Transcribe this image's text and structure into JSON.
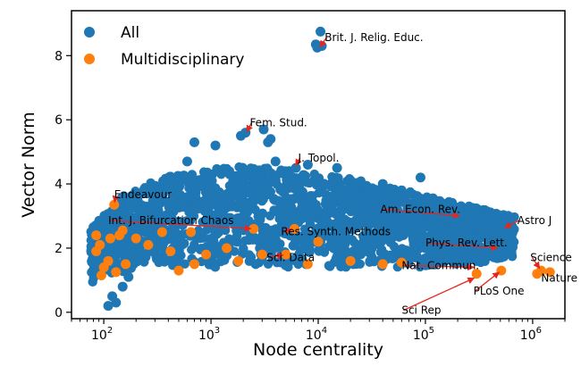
{
  "chart_data": {
    "type": "scatter",
    "xlabel": "Node centrality",
    "ylabel": "Vector Norm",
    "xscale": "log",
    "xlim": [
      50,
      2000000
    ],
    "ylim": [
      -0.2,
      9.4
    ],
    "xticks": [
      100,
      1000,
      10000,
      100000,
      1000000
    ],
    "xtick_labels": [
      "10",
      "10",
      "10",
      "10",
      "10"
    ],
    "xtick_exponents": [
      "2",
      "3",
      "4",
      "5",
      "6"
    ],
    "yticks": [
      0,
      2,
      4,
      6,
      8
    ],
    "ytick_labels": [
      "0",
      "2",
      "4",
      "6",
      "8"
    ],
    "grid": false,
    "legend_position": "top-left",
    "colors": {
      "All": "#1f77b4",
      "Multidisciplinary": "#ff7f0e",
      "arrow": "#e8261c"
    },
    "series": [
      {
        "name": "All",
        "points": [
          [
            9500,
            8.35
          ],
          [
            10500,
            8.75
          ],
          [
            10800,
            8.3
          ],
          [
            9800,
            8.25
          ],
          [
            2100,
            5.6
          ],
          [
            1900,
            5.5
          ],
          [
            3100,
            5.7
          ],
          [
            3600,
            5.4
          ],
          [
            3400,
            5.3
          ],
          [
            6200,
            4.5
          ],
          [
            8000,
            4.6
          ],
          [
            700,
            5.3
          ],
          [
            1100,
            5.2
          ],
          [
            180000,
            3.1
          ],
          [
            210000,
            3.0
          ],
          [
            250000,
            2.8
          ],
          [
            90000,
            4.2
          ],
          [
            520000,
            2.6
          ],
          [
            600000,
            2.2
          ],
          [
            560000,
            2.3
          ],
          [
            100000,
            2.0
          ],
          [
            180000,
            1.8
          ],
          [
            300000,
            1.6
          ],
          [
            120,
            0.5
          ],
          [
            130,
            0.3
          ],
          [
            150,
            0.8
          ],
          [
            110,
            0.2
          ],
          [
            170,
            1.1
          ],
          [
            90,
            1.5
          ],
          [
            95,
            2.7
          ],
          [
            600,
            4.7
          ],
          [
            4000,
            4.7
          ],
          [
            15000,
            4.5
          ],
          [
            40000,
            4.0
          ],
          [
            60000,
            3.8
          ]
        ]
      },
      {
        "name": "Multidisciplinary",
        "points": [
          [
            125,
            3.35
          ],
          [
            140,
            2.4
          ],
          [
            2500,
            2.6
          ],
          [
            6000,
            2.6
          ],
          [
            10000,
            2.2
          ],
          [
            5000,
            1.8
          ],
          [
            1100000,
            1.2
          ],
          [
            1200000,
            1.3
          ],
          [
            1450000,
            1.25
          ],
          [
            510000,
            1.3
          ],
          [
            300000,
            1.2
          ],
          [
            85,
            1.9
          ],
          [
            92,
            2.1
          ],
          [
            100,
            1.4
          ],
          [
            110,
            1.6
          ],
          [
            115,
            2.3
          ],
          [
            160,
            1.5
          ],
          [
            200,
            2.3
          ],
          [
            260,
            2.1
          ],
          [
            350,
            2.5
          ],
          [
            420,
            1.9
          ],
          [
            500,
            1.3
          ],
          [
            650,
            2.5
          ],
          [
            900,
            1.8
          ],
          [
            1400,
            2.0
          ],
          [
            1800,
            1.6
          ],
          [
            3000,
            1.8
          ],
          [
            8000,
            1.5
          ],
          [
            20000,
            1.6
          ],
          [
            40000,
            1.5
          ],
          [
            60000,
            1.55
          ],
          [
            95,
            1.15
          ],
          [
            130,
            1.25
          ],
          [
            150,
            2.55
          ],
          [
            85,
            2.4
          ],
          [
            700,
            1.5
          ]
        ]
      }
    ],
    "annotations": [
      {
        "text": "Brit. J. Relig. Educ.",
        "x": 10000,
        "y": 8.2,
        "tx": 11500,
        "ty": 8.45
      },
      {
        "text": "Fem. Stud.",
        "x": 2100,
        "y": 5.55,
        "tx": 2300,
        "ty": 5.8
      },
      {
        "text": "J. Topol.",
        "x": 6000,
        "y": 4.5,
        "tx": 6500,
        "ty": 4.7
      },
      {
        "text": "Endeavour",
        "x": 125,
        "y": 3.35,
        "tx": 125,
        "ty": 3.55
      },
      {
        "text": "Am. Econ. Rev.",
        "x": 220000,
        "y": 3.0,
        "tx": 38000,
        "ty": 3.1
      },
      {
        "text": "Astro J",
        "x": 520000,
        "y": 2.6,
        "tx": 720000,
        "ty": 2.75
      },
      {
        "text": "Int. J. Bifurcation Chaos",
        "x": 2500,
        "y": 2.6,
        "tx": 110,
        "ty": 2.75
      },
      {
        "text": "Res. Synth. Methods",
        "x": 6000,
        "y": 2.6,
        "tx": 4500,
        "ty": 2.4
      },
      {
        "text": "Phys. Rev. Lett.",
        "x": 500000,
        "y": 2.0,
        "tx": 100000,
        "ty": 2.05
      },
      {
        "text": "Sci. Data",
        "x": 5000,
        "y": 1.8,
        "tx": 3300,
        "ty": 1.6
      },
      {
        "text": "Nat. Commun.",
        "x": 300000,
        "y": 1.4,
        "tx": 60000,
        "ty": 1.35
      },
      {
        "text": "Science",
        "x": 1200000,
        "y": 1.3,
        "tx": 950000,
        "ty": 1.6
      },
      {
        "text": "Nature",
        "x": 1200000,
        "y": 1.2,
        "tx": 1200000,
        "ty": 0.95
      },
      {
        "text": "PLoS One",
        "x": 510000,
        "y": 1.3,
        "tx": 280000,
        "ty": 0.55
      },
      {
        "text": "Sci Rep",
        "x": 300000,
        "y": 1.1,
        "tx": 60000,
        "ty": -0.05
      }
    ]
  }
}
